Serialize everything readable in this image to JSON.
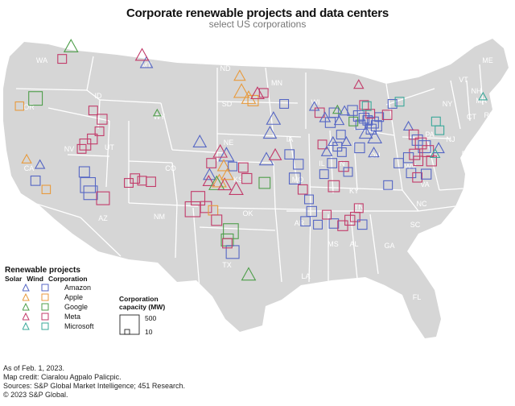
{
  "title": "Corporate renewable projects and data centers",
  "subtitle": "select US corporations",
  "colors": {
    "land": "#d6d6d6",
    "border": "#ffffff",
    "Amazon": "#5566c4",
    "Apple": "#e89a3c",
    "Google": "#4e9e4a",
    "Meta": "#c23a69",
    "Microsoft": "#3aa89a"
  },
  "states": [
    "WA",
    "OR",
    "ID",
    "MT",
    "ND",
    "MN",
    "WI",
    "MI",
    "ME",
    "VT",
    "NH",
    "MA",
    "RI",
    "CT",
    "NY",
    "SD",
    "WY",
    "NV",
    "CA",
    "UT",
    "CO",
    "NE",
    "IA",
    "IL",
    "IN",
    "OH",
    "PA",
    "NJ",
    "DE",
    "MD",
    "KS",
    "MO",
    "KY",
    "WV",
    "VA",
    "AZ",
    "NM",
    "OK",
    "AR",
    "TN",
    "NC",
    "SC",
    "MS",
    "AL",
    "GA",
    "TX",
    "LA",
    "FL"
  ],
  "legend": {
    "title": "Renewable projects",
    "col_solar": "Solar",
    "col_wind": "Wind",
    "col_corp": "Corporation",
    "corporations": [
      "Amazon",
      "Apple",
      "Google",
      "Meta",
      "Microsoft"
    ]
  },
  "capacity_legend": {
    "title_line1": "Corporation",
    "title_line2": "capacity (MW)",
    "max": "500",
    "min": "10"
  },
  "footer": {
    "line1": "As of Feb. 1, 2023.",
    "line2": "Map credit: Ciaralou Agpalo Palicpic.",
    "line3": "Sources: S&P Global Market Intelligence; 451 Research.",
    "line4": "© 2023 S&P Global."
  },
  "projects": [
    {
      "corp": "Google",
      "type": "solar",
      "lon": -117.0,
      "lat": 47.3,
      "mw": 300
    },
    {
      "corp": "Meta",
      "type": "wind",
      "lon": -118.0,
      "lat": 46.1,
      "mw": 60
    },
    {
      "corp": "Amazon",
      "type": "solar",
      "lon": -108.5,
      "lat": 45.8,
      "mw": 200
    },
    {
      "corp": "Meta",
      "type": "solar",
      "lon": -109.0,
      "lat": 46.5,
      "mw": 250
    },
    {
      "corp": "Apple",
      "type": "solar",
      "lon": -98.0,
      "lat": 44.6,
      "mw": 150
    },
    {
      "corp": "Apple",
      "type": "solar",
      "lon": -97.8,
      "lat": 43.2,
      "mw": 400
    },
    {
      "corp": "Apple",
      "type": "solar",
      "lon": -97.0,
      "lat": 42.6,
      "mw": 300
    },
    {
      "corp": "Apple",
      "type": "wind",
      "lon": -96.5,
      "lat": 42.3,
      "mw": 120
    },
    {
      "corp": "Meta",
      "type": "solar",
      "lon": -96.0,
      "lat": 43.0,
      "mw": 250
    },
    {
      "corp": "Meta",
      "type": "wind",
      "lon": -95.3,
      "lat": 43.0,
      "mw": 60
    },
    {
      "corp": "Amazon",
      "type": "wind",
      "lon": -93.0,
      "lat": 42.0,
      "mw": 60
    },
    {
      "corp": "Google",
      "type": "wind",
      "lon": -121.0,
      "lat": 42.5,
      "mw": 300
    },
    {
      "corp": "Apple",
      "type": "wind",
      "lon": -122.8,
      "lat": 41.8,
      "mw": 50
    },
    {
      "corp": "Apple",
      "type": "solar",
      "lon": -122.0,
      "lat": 37.0,
      "mw": 80
    },
    {
      "corp": "Amazon",
      "type": "wind",
      "lon": -121.0,
      "lat": 35.0,
      "mw": 80
    },
    {
      "corp": "Apple",
      "type": "wind",
      "lon": -119.8,
      "lat": 34.2,
      "mw": 50
    },
    {
      "corp": "Amazon",
      "type": "solar",
      "lon": -120.5,
      "lat": 36.5,
      "mw": 80
    },
    {
      "corp": "Meta",
      "type": "wind",
      "lon": -114.5,
      "lat": 41.4,
      "mw": 60
    },
    {
      "corp": "Meta",
      "type": "wind",
      "lon": -113.5,
      "lat": 40.6,
      "mw": 100
    },
    {
      "corp": "Meta",
      "type": "wind",
      "lon": -113.8,
      "lat": 39.5,
      "mw": 60
    },
    {
      "corp": "Meta",
      "type": "wind",
      "lon": -114.6,
      "lat": 38.8,
      "mw": 100
    },
    {
      "corp": "Meta",
      "type": "wind",
      "lon": -115.4,
      "lat": 38.3,
      "mw": 150
    },
    {
      "corp": "Meta",
      "type": "wind",
      "lon": -115.8,
      "lat": 37.9,
      "mw": 60
    },
    {
      "corp": "Amazon",
      "type": "wind",
      "lon": -115.5,
      "lat": 35.8,
      "mw": 120
    },
    {
      "corp": "Amazon",
      "type": "wind",
      "lon": -115.1,
      "lat": 34.6,
      "mw": 400
    },
    {
      "corp": "Amazon",
      "type": "wind",
      "lon": -114.8,
      "lat": 33.9,
      "mw": 300
    },
    {
      "corp": "Meta",
      "type": "wind",
      "lon": -113.4,
      "lat": 33.4,
      "mw": 250
    },
    {
      "corp": "Meta",
      "type": "wind",
      "lon": -110.5,
      "lat": 34.8,
      "mw": 60
    },
    {
      "corp": "Meta",
      "type": "wind",
      "lon": -109.8,
      "lat": 35.2,
      "mw": 80
    },
    {
      "corp": "Meta",
      "type": "wind",
      "lon": -109.0,
      "lat": 35.0,
      "mw": 60
    },
    {
      "corp": "Meta",
      "type": "wind",
      "lon": -108.0,
      "lat": 34.9,
      "mw": 80
    },
    {
      "corp": "Google",
      "type": "solar",
      "lon": -107.3,
      "lat": 41.2,
      "mw": 20
    },
    {
      "corp": "Amazon",
      "type": "solar",
      "lon": -102.5,
      "lat": 38.6,
      "mw": 250
    },
    {
      "corp": "Amazon",
      "type": "solar",
      "lon": -99.5,
      "lat": 37.4,
      "mw": 400
    },
    {
      "corp": "Meta",
      "type": "solar",
      "lon": -100.2,
      "lat": 37.7,
      "mw": 300
    },
    {
      "corp": "Apple",
      "type": "solar",
      "lon": -99.8,
      "lat": 36.4,
      "mw": 200
    },
    {
      "corp": "Amazon",
      "type": "solar",
      "lon": -101.4,
      "lat": 35.6,
      "mw": 200
    },
    {
      "corp": "Meta",
      "type": "solar",
      "lon": -101.5,
      "lat": 35.0,
      "mw": 150
    },
    {
      "corp": "Apple",
      "type": "solar",
      "lon": -100.3,
      "lat": 35.0,
      "mw": 300
    },
    {
      "corp": "Google",
      "type": "solar",
      "lon": -100.6,
      "lat": 34.8,
      "mw": 400
    },
    {
      "corp": "Meta",
      "type": "wind",
      "lon": -101.2,
      "lat": 36.6,
      "mw": 80
    },
    {
      "corp": "Amazon",
      "type": "wind",
      "lon": -98.8,
      "lat": 36.3,
      "mw": 60
    },
    {
      "corp": "Meta",
      "type": "wind",
      "lon": -97.6,
      "lat": 36.2,
      "mw": 80
    },
    {
      "corp": "Meta",
      "type": "wind",
      "lon": -97.2,
      "lat": 35.2,
      "mw": 100
    },
    {
      "corp": "Meta",
      "type": "solar",
      "lon": -98.4,
      "lat": 34.3,
      "mw": 300
    },
    {
      "corp": "Meta",
      "type": "solar",
      "lon": -99.7,
      "lat": 34.7,
      "mw": 250
    },
    {
      "corp": "Apple",
      "type": "solar",
      "lon": -99.4,
      "lat": 35.6,
      "mw": 200
    },
    {
      "corp": "Amazon",
      "type": "solar",
      "lon": -95.0,
      "lat": 37.0,
      "mw": 300
    },
    {
      "corp": "Meta",
      "type": "solar",
      "lon": -94.0,
      "lat": 37.4,
      "mw": 200
    },
    {
      "corp": "Amazon",
      "type": "solar",
      "lon": -94.6,
      "lat": 39.4,
      "mw": 250
    },
    {
      "corp": "Amazon",
      "type": "solar",
      "lon": -94.2,
      "lat": 40.7,
      "mw": 300
    },
    {
      "corp": "Google",
      "type": "wind",
      "lon": -95.2,
      "lat": 34.8,
      "mw": 150
    },
    {
      "corp": "Meta",
      "type": "wind",
      "lon": -102.7,
      "lat": 33.4,
      "mw": 300
    },
    {
      "corp": "Meta",
      "type": "wind",
      "lon": -101.8,
      "lat": 32.6,
      "mw": 150
    },
    {
      "corp": "Apple",
      "type": "wind",
      "lon": -101.0,
      "lat": 32.3,
      "mw": 80
    },
    {
      "corp": "Meta",
      "type": "wind",
      "lon": -100.6,
      "lat": 31.4,
      "mw": 120
    },
    {
      "corp": "Google",
      "type": "wind",
      "lon": -99.0,
      "lat": 30.4,
      "mw": 400
    },
    {
      "corp": "Google",
      "type": "wind",
      "lon": -99.4,
      "lat": 29.6,
      "mw": 200
    },
    {
      "corp": "Amazon",
      "type": "wind",
      "lon": -98.8,
      "lat": 28.5,
      "mw": 250
    },
    {
      "corp": "Meta",
      "type": "wind",
      "lon": -99.4,
      "lat": 29.3,
      "mw": 80
    },
    {
      "corp": "Google",
      "type": "solar",
      "lon": -97.0,
      "lat": 26.5,
      "mw": 300
    },
    {
      "corp": "Meta",
      "type": "wind",
      "lon": -103.3,
      "lat": 32.4,
      "mw": 400
    },
    {
      "corp": "Amazon",
      "type": "wind",
      "lon": -92.4,
      "lat": 37.4,
      "mw": 80
    },
    {
      "corp": "Amazon",
      "type": "wind",
      "lon": -91.4,
      "lat": 36.5,
      "mw": 100
    },
    {
      "corp": "Amazon",
      "type": "wind",
      "lon": -91.8,
      "lat": 35.2,
      "mw": 150
    },
    {
      "corp": "Meta",
      "type": "wind",
      "lon": -90.9,
      "lat": 34.2,
      "mw": 80
    },
    {
      "corp": "Amazon",
      "type": "wind",
      "lon": -90.2,
      "lat": 33.3,
      "mw": 60
    },
    {
      "corp": "Amazon",
      "type": "wind",
      "lon": -89.9,
      "lat": 32.2,
      "mw": 100
    },
    {
      "corp": "Amazon",
      "type": "wind",
      "lon": -89.2,
      "lat": 31.0,
      "mw": 60
    },
    {
      "corp": "Amazon",
      "type": "wind",
      "lon": -90.6,
      "lat": 31.3,
      "mw": 80
    },
    {
      "corp": "Amazon",
      "type": "wind",
      "lon": -88.5,
      "lat": 35.6,
      "mw": 60
    },
    {
      "corp": "Meta",
      "type": "wind",
      "lon": -87.4,
      "lat": 34.5,
      "mw": 150
    },
    {
      "corp": "Amazon",
      "type": "wind",
      "lon": -87.6,
      "lat": 36.6,
      "mw": 80
    },
    {
      "corp": "Meta",
      "type": "wind",
      "lon": -86.3,
      "lat": 36.3,
      "mw": 100
    },
    {
      "corp": "Amazon",
      "type": "wind",
      "lon": -85.8,
      "lat": 35.8,
      "mw": 60
    },
    {
      "corp": "Amazon",
      "type": "wind",
      "lon": -87.4,
      "lat": 31.1,
      "mw": 80
    },
    {
      "corp": "Meta",
      "type": "wind",
      "lon": -86.4,
      "lat": 30.9,
      "mw": 100
    },
    {
      "corp": "Meta",
      "type": "wind",
      "lon": -85.6,
      "lat": 31.4,
      "mw": 100
    },
    {
      "corp": "Meta",
      "type": "wind",
      "lon": -85.0,
      "lat": 31.7,
      "mw": 80
    },
    {
      "corp": "Amazon",
      "type": "wind",
      "lon": -84.2,
      "lat": 31.0,
      "mw": 80
    },
    {
      "corp": "Meta",
      "type": "wind",
      "lon": -84.6,
      "lat": 32.5,
      "mw": 60
    },
    {
      "corp": "Meta",
      "type": "wind",
      "lon": -88.2,
      "lat": 31.9,
      "mw": 60
    },
    {
      "corp": "Amazon",
      "type": "wind",
      "lon": -81.3,
      "lat": 34.6,
      "mw": 60
    },
    {
      "corp": "Amazon",
      "type": "solar",
      "lon": -89.6,
      "lat": 41.8,
      "mw": 80
    },
    {
      "corp": "Meta",
      "type": "wind",
      "lon": -89.0,
      "lat": 41.2,
      "mw": 80
    },
    {
      "corp": "Amazon",
      "type": "solar",
      "lon": -88.4,
      "lat": 40.8,
      "mw": 120
    },
    {
      "corp": "Amazon",
      "type": "wind",
      "lon": -87.8,
      "lat": 40.3,
      "mw": 100
    },
    {
      "corp": "Amazon",
      "type": "wind",
      "lon": -87.4,
      "lat": 41.2,
      "mw": 80
    },
    {
      "corp": "Meta",
      "type": "wind",
      "lon": -88.7,
      "lat": 38.3,
      "mw": 60
    },
    {
      "corp": "Amazon",
      "type": "solar",
      "lon": -87.5,
      "lat": 38.6,
      "mw": 80
    },
    {
      "corp": "Amazon",
      "type": "solar",
      "lon": -86.8,
      "lat": 40.5,
      "mw": 80
    },
    {
      "corp": "Google",
      "type": "solar",
      "lon": -87.0,
      "lat": 41.5,
      "mw": 60
    },
    {
      "corp": "Amazon",
      "type": "solar",
      "lon": -86.2,
      "lat": 41.4,
      "mw": 100
    },
    {
      "corp": "Amazon",
      "type": "wind",
      "lon": -85.3,
      "lat": 41.4,
      "mw": 100
    },
    {
      "corp": "Amazon",
      "type": "wind",
      "lon": -84.6,
      "lat": 40.9,
      "mw": 120
    },
    {
      "corp": "Amazon",
      "type": "wind",
      "lon": -84.0,
      "lat": 40.7,
      "mw": 100
    },
    {
      "corp": "Amazon",
      "type": "wind",
      "lon": -83.6,
      "lat": 40.5,
      "mw": 80
    },
    {
      "corp": "Amazon",
      "type": "wind",
      "lon": -83.0,
      "lat": 40.3,
      "mw": 150
    },
    {
      "corp": "Amazon",
      "type": "wind",
      "lon": -82.6,
      "lat": 40.0,
      "mw": 120
    },
    {
      "corp": "Amazon",
      "type": "wind",
      "lon": -83.2,
      "lat": 39.7,
      "mw": 100
    },
    {
      "corp": "Amazon",
      "type": "solar",
      "lon": -83.8,
      "lat": 39.4,
      "mw": 250
    },
    {
      "corp": "Amazon",
      "type": "solar",
      "lon": -82.8,
      "lat": 39.0,
      "mw": 300
    },
    {
      "corp": "Amazon",
      "type": "wind",
      "lon": -84.4,
      "lat": 40.1,
      "mw": 80
    },
    {
      "corp": "Amazon",
      "type": "wind",
      "lon": -82.3,
      "lat": 40.8,
      "mw": 60
    },
    {
      "corp": "Meta",
      "type": "wind",
      "lon": -83.3,
      "lat": 41.1,
      "mw": 60
    },
    {
      "corp": "Meta",
      "type": "solar",
      "lon": -84.6,
      "lat": 43.8,
      "mw": 80
    },
    {
      "corp": "Meta",
      "type": "wind",
      "lon": -84.0,
      "lat": 41.9,
      "mw": 60
    },
    {
      "corp": "Google",
      "type": "wind",
      "lon": -85.2,
      "lat": 40.4,
      "mw": 60
    },
    {
      "corp": "Microsoft",
      "type": "wind",
      "lon": -83.7,
      "lat": 41.8,
      "mw": 60
    },
    {
      "corp": "Amazon",
      "type": "wind",
      "lon": -80.8,
      "lat": 42.0,
      "mw": 60
    },
    {
      "corp": "Microsoft",
      "type": "wind",
      "lon": -80.0,
      "lat": 42.2,
      "mw": 60
    },
    {
      "corp": "Amazon",
      "type": "wind",
      "lon": -86.6,
      "lat": 39.2,
      "mw": 60
    },
    {
      "corp": "Amazon",
      "type": "solar",
      "lon": -86.0,
      "lat": 38.6,
      "mw": 80
    },
    {
      "corp": "Amazon",
      "type": "wind",
      "lon": -87.0,
      "lat": 38.1,
      "mw": 60
    },
    {
      "corp": "Amazon",
      "type": "solar",
      "lon": -88.2,
      "lat": 37.7,
      "mw": 120
    },
    {
      "corp": "Amazon",
      "type": "wind",
      "lon": -86.5,
      "lat": 37.6,
      "mw": 60
    },
    {
      "corp": "Amazon",
      "type": "wind",
      "lon": -84.5,
      "lat": 38.0,
      "mw": 100
    },
    {
      "corp": "Amazon",
      "type": "solar",
      "lon": -82.9,
      "lat": 37.6,
      "mw": 120
    },
    {
      "corp": "Meta",
      "type": "wind",
      "lon": -81.4,
      "lat": 41.0,
      "mw": 80
    },
    {
      "corp": "Amazon",
      "type": "solar",
      "lon": -79.0,
      "lat": 40.0,
      "mw": 80
    },
    {
      "corp": "Meta",
      "type": "wind",
      "lon": -78.4,
      "lat": 39.2,
      "mw": 80
    },
    {
      "corp": "Amazon",
      "type": "wind",
      "lon": -78.0,
      "lat": 38.7,
      "mw": 120
    },
    {
      "corp": "Meta",
      "type": "wind",
      "lon": -77.6,
      "lat": 38.4,
      "mw": 150
    },
    {
      "corp": "Amazon",
      "type": "wind",
      "lon": -77.2,
      "lat": 38.1,
      "mw": 200
    },
    {
      "corp": "Meta",
      "type": "wind",
      "lon": -76.8,
      "lat": 37.7,
      "mw": 150
    },
    {
      "corp": "Meta",
      "type": "wind",
      "lon": -78.3,
      "lat": 37.4,
      "mw": 120
    },
    {
      "corp": "Amazon",
      "type": "wind",
      "lon": -79.0,
      "lat": 37.1,
      "mw": 100
    },
    {
      "corp": "Meta",
      "type": "wind",
      "lon": -77.9,
      "lat": 36.8,
      "mw": 80
    },
    {
      "corp": "Amazon",
      "type": "wind",
      "lon": -80.1,
      "lat": 36.6,
      "mw": 80
    },
    {
      "corp": "Meta",
      "type": "wind",
      "lon": -76.4,
      "lat": 36.8,
      "mw": 100
    },
    {
      "corp": "Amazon",
      "type": "solar",
      "lon": -75.6,
      "lat": 38.0,
      "mw": 150
    },
    {
      "corp": "Microsoft",
      "type": "solar",
      "lon": -76.0,
      "lat": 37.5,
      "mw": 80
    },
    {
      "corp": "Amazon",
      "type": "wind",
      "lon": -78.7,
      "lat": 35.7,
      "mw": 80
    },
    {
      "corp": "Meta",
      "type": "wind",
      "lon": -78.0,
      "lat": 35.3,
      "mw": 80
    },
    {
      "corp": "Amazon",
      "type": "wind",
      "lon": -77.0,
      "lat": 35.6,
      "mw": 100
    },
    {
      "corp": "Microsoft",
      "type": "wind",
      "lon": -75.5,
      "lat": 39.6,
      "mw": 60
    },
    {
      "corp": "Microsoft",
      "type": "wind",
      "lon": -75.9,
      "lat": 40.4,
      "mw": 60
    },
    {
      "corp": "Microsoft",
      "type": "solar",
      "lon": -70.6,
      "lat": 42.7,
      "mw": 40
    }
  ]
}
